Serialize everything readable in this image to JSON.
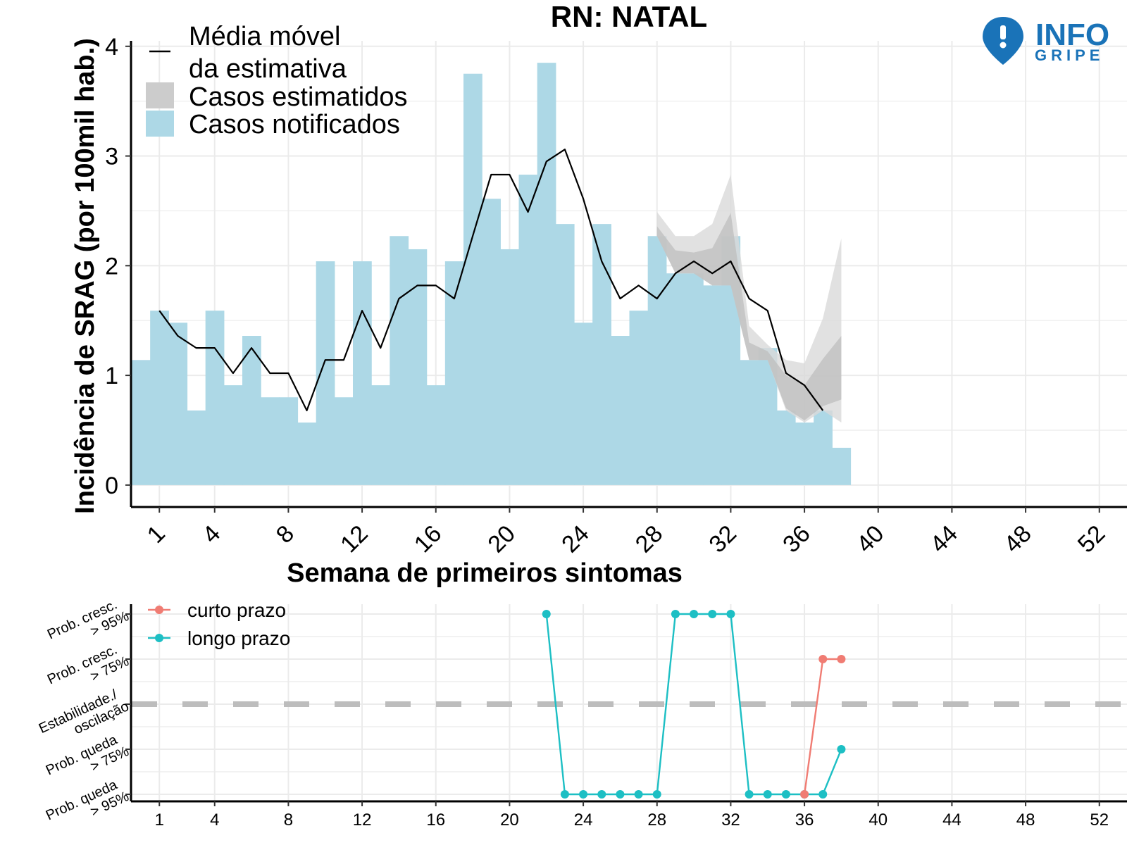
{
  "chart_data": [
    {
      "type": "bar",
      "title": "RN: NATAL",
      "xlabel": "Semana de primeiros sintomas",
      "ylabel": "Incidência de SRAG (por 100mil hab.)",
      "xlim": [
        -0.5,
        53.5
      ],
      "ylim": [
        -0.2,
        4.05
      ],
      "xticks": [
        "1",
        "4",
        "8",
        "12",
        "16",
        "20",
        "24",
        "28",
        "32",
        "36",
        "40",
        "44",
        "48",
        "52"
      ],
      "yticks": [
        "0",
        "1",
        "2",
        "3",
        "4"
      ],
      "grid": true,
      "legend_position": "top-left",
      "legend": [
        {
          "key": "line",
          "label_lines": [
            "Média móvel",
            "da estimativa"
          ]
        },
        {
          "key": "band",
          "label": "Casos estimatidos"
        },
        {
          "key": "bars",
          "label": "Casos notificados"
        }
      ],
      "colors": {
        "bars": "#add8e6",
        "band_outer": "#d9d9d9",
        "band_inner": "#bdbdbd",
        "line": "#000000",
        "grid": "#ebebeb"
      },
      "series": [
        {
          "name": "Casos notificados",
          "type": "bar",
          "x": [
            0,
            1,
            2,
            3,
            4,
            5,
            6,
            7,
            8,
            9,
            10,
            11,
            12,
            13,
            14,
            15,
            16,
            17,
            18,
            19,
            20,
            21,
            22,
            23,
            24,
            25,
            26,
            27,
            28,
            29,
            30,
            31,
            32,
            33,
            34,
            35,
            36,
            37,
            38
          ],
          "values": [
            1.14,
            1.59,
            1.48,
            0.68,
            1.59,
            0.91,
            1.36,
            0.8,
            0.8,
            0.57,
            2.04,
            0.8,
            2.04,
            0.91,
            2.27,
            2.15,
            0.91,
            2.04,
            3.75,
            2.61,
            2.15,
            2.83,
            3.85,
            2.38,
            1.48,
            2.38,
            1.36,
            1.59,
            2.27,
            1.93,
            1.93,
            1.82,
            2.27,
            1.14,
            1.25,
            0.68,
            0.57,
            0.68,
            0.34
          ]
        },
        {
          "name": "Casos estimatidos",
          "type": "band",
          "x": [
            28,
            29,
            30,
            31,
            32,
            33,
            34,
            35,
            36,
            37,
            38
          ],
          "lower": [
            2.27,
            1.93,
            1.93,
            1.82,
            1.82,
            1.14,
            1.14,
            0.68,
            0.57,
            0.68,
            0.57
          ],
          "upper": [
            2.49,
            2.27,
            2.27,
            2.38,
            2.83,
            1.45,
            1.28,
            1.14,
            1.11,
            1.52,
            2.25
          ],
          "lower_inner": [
            2.27,
            1.93,
            1.93,
            1.82,
            1.82,
            1.14,
            1.14,
            0.7,
            0.59,
            0.72,
            0.78
          ],
          "upper_inner": [
            2.36,
            2.14,
            2.12,
            2.16,
            2.48,
            1.3,
            1.22,
            1.0,
            0.91,
            1.15,
            1.36
          ]
        },
        {
          "name": "Média móvel da estimativa",
          "type": "line",
          "x": [
            1,
            2,
            3,
            4,
            5,
            6,
            7,
            8,
            9,
            10,
            11,
            12,
            13,
            14,
            15,
            16,
            17,
            18,
            19,
            20,
            21,
            22,
            23,
            24,
            25,
            26,
            27,
            28,
            29,
            30,
            31,
            32,
            33,
            34,
            35,
            36,
            37
          ],
          "values": [
            1.59,
            1.36,
            1.25,
            1.25,
            1.02,
            1.25,
            1.02,
            1.02,
            0.68,
            1.14,
            1.14,
            1.59,
            1.25,
            1.7,
            1.82,
            1.82,
            1.7,
            2.27,
            2.83,
            2.83,
            2.49,
            2.95,
            3.06,
            2.61,
            2.04,
            1.7,
            1.82,
            1.7,
            1.93,
            2.04,
            1.93,
            2.04,
            1.7,
            1.59,
            1.02,
            0.91,
            0.68
          ]
        }
      ]
    },
    {
      "type": "line",
      "xlim": [
        -0.5,
        53.5
      ],
      "xticks": [
        "1",
        "4",
        "8",
        "12",
        "16",
        "20",
        "24",
        "28",
        "32",
        "36",
        "40",
        "44",
        "48",
        "52"
      ],
      "grid": true,
      "legend_position": "top-left",
      "y_levels": [
        {
          "value": 2,
          "lines": [
            "Prob. cresc.",
            "> 95%"
          ]
        },
        {
          "value": 1,
          "lines": [
            "Prob. cresc.",
            "> 75%"
          ]
        },
        {
          "value": 0,
          "lines": [
            "Estabilidade./",
            "oscilação"
          ]
        },
        {
          "value": -1,
          "lines": [
            "Prob. queda",
            "> 75%"
          ]
        },
        {
          "value": -2,
          "lines": [
            "Prob. queda",
            "> 95%"
          ]
        }
      ],
      "reference_line": {
        "y": 0,
        "style": "dashed",
        "color": "#bdbdbd"
      },
      "series": [
        {
          "name": "curto prazo",
          "color": "#f07c73",
          "x": [
            36,
            37,
            38
          ],
          "values": [
            -2,
            1,
            1
          ]
        },
        {
          "name": "longo prazo",
          "color": "#1dbfc4",
          "x": [
            22,
            23,
            24,
            25,
            26,
            27,
            28,
            29,
            30,
            31,
            32,
            33,
            34,
            35,
            36,
            37,
            38
          ],
          "values": [
            2,
            -2,
            -2,
            -2,
            -2,
            -2,
            -2,
            2,
            2,
            2,
            2,
            -2,
            -2,
            -2,
            -2,
            -2,
            -1
          ]
        }
      ]
    }
  ],
  "logo": {
    "line1": "INFO",
    "line2": "GRIPE",
    "color": "#1a73b8"
  }
}
